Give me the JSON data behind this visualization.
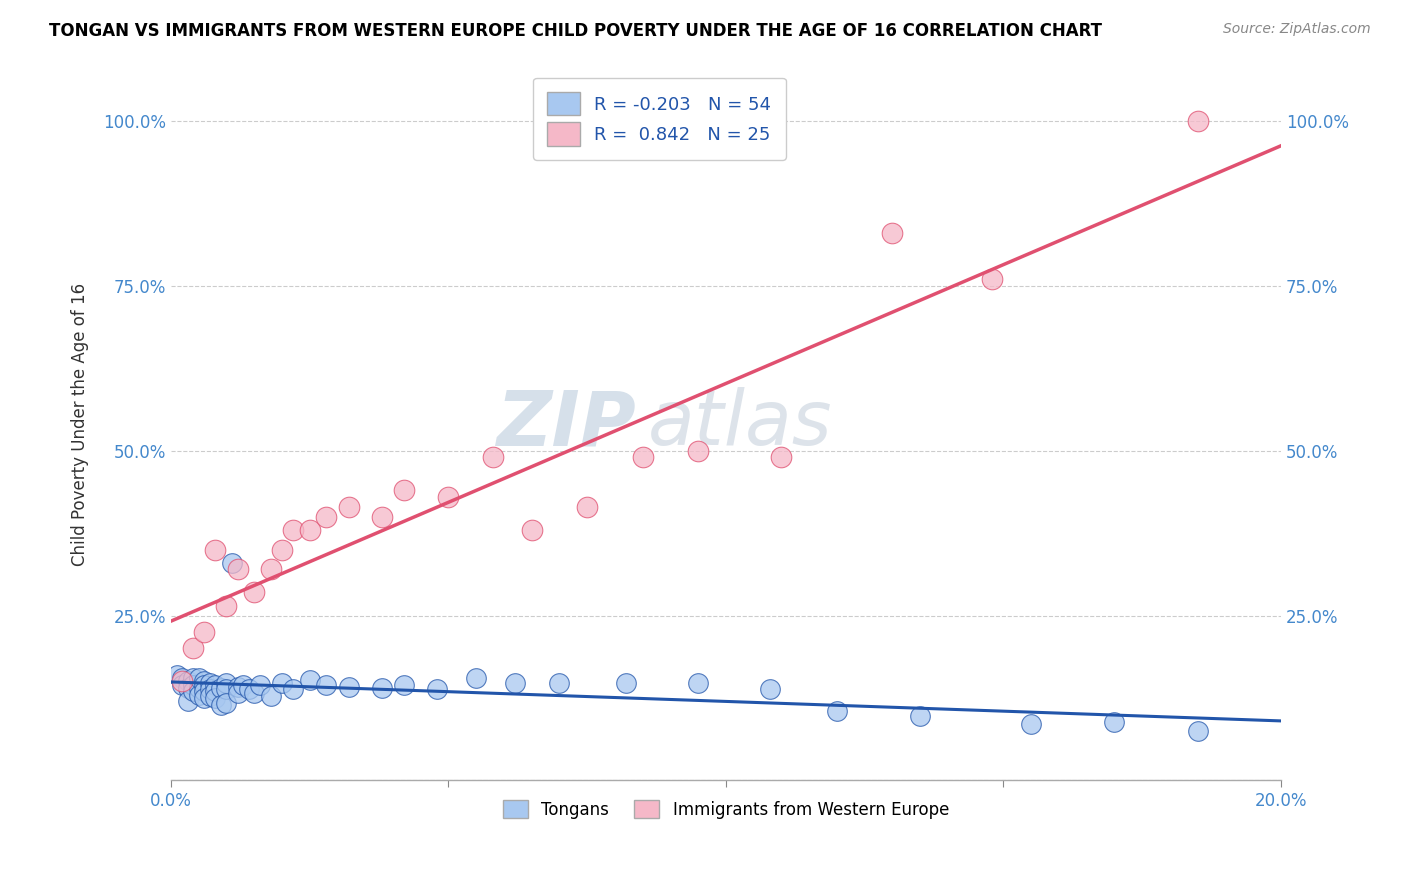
{
  "title": "TONGAN VS IMMIGRANTS FROM WESTERN EUROPE CHILD POVERTY UNDER THE AGE OF 16 CORRELATION CHART",
  "source": "Source: ZipAtlas.com",
  "ylabel": "Child Poverty Under the Age of 16",
  "xlim": [
    0.0,
    0.2
  ],
  "ylim": [
    0.0,
    1.08
  ],
  "xtick_vals": [
    0.0,
    0.05,
    0.1,
    0.15,
    0.2
  ],
  "xtick_labels": [
    "0.0%",
    "",
    "",
    "",
    "20.0%"
  ],
  "ytick_vals": [
    0.0,
    0.25,
    0.5,
    0.75,
    1.0
  ],
  "ytick_labels": [
    "",
    "25.0%",
    "50.0%",
    "75.0%",
    "100.0%"
  ],
  "blue_color": "#A8C8F0",
  "pink_color": "#F5B8C8",
  "blue_line_color": "#2255AA",
  "pink_line_color": "#E05070",
  "watermark_zip": "ZIP",
  "watermark_atlas": "atlas",
  "legend_R_blue": "-0.203",
  "legend_N_blue": "54",
  "legend_R_pink": "0.842",
  "legend_N_pink": "25",
  "legend_label_blue": "Tongans",
  "legend_label_pink": "Immigrants from Western Europe",
  "blue_scatter_x": [
    0.001,
    0.002,
    0.002,
    0.003,
    0.003,
    0.003,
    0.004,
    0.004,
    0.004,
    0.005,
    0.005,
    0.005,
    0.006,
    0.006,
    0.006,
    0.006,
    0.007,
    0.007,
    0.007,
    0.008,
    0.008,
    0.008,
    0.009,
    0.009,
    0.01,
    0.01,
    0.01,
    0.011,
    0.012,
    0.012,
    0.013,
    0.014,
    0.015,
    0.016,
    0.018,
    0.02,
    0.022,
    0.025,
    0.028,
    0.032,
    0.038,
    0.042,
    0.048,
    0.055,
    0.062,
    0.07,
    0.082,
    0.095,
    0.108,
    0.12,
    0.135,
    0.155,
    0.17,
    0.185
  ],
  "blue_scatter_y": [
    0.16,
    0.155,
    0.145,
    0.15,
    0.14,
    0.12,
    0.155,
    0.145,
    0.135,
    0.14,
    0.13,
    0.155,
    0.15,
    0.145,
    0.135,
    0.125,
    0.148,
    0.138,
    0.128,
    0.145,
    0.135,
    0.125,
    0.14,
    0.115,
    0.148,
    0.138,
    0.118,
    0.33,
    0.142,
    0.132,
    0.145,
    0.138,
    0.132,
    0.145,
    0.128,
    0.148,
    0.138,
    0.152,
    0.145,
    0.142,
    0.14,
    0.145,
    0.138,
    0.155,
    0.148,
    0.148,
    0.148,
    0.148,
    0.138,
    0.105,
    0.098,
    0.085,
    0.088,
    0.075
  ],
  "pink_scatter_x": [
    0.002,
    0.004,
    0.006,
    0.008,
    0.01,
    0.012,
    0.015,
    0.018,
    0.02,
    0.022,
    0.025,
    0.028,
    0.032,
    0.038,
    0.042,
    0.05,
    0.058,
    0.065,
    0.075,
    0.085,
    0.095,
    0.11,
    0.13,
    0.148,
    0.185
  ],
  "pink_scatter_y": [
    0.15,
    0.2,
    0.225,
    0.35,
    0.265,
    0.32,
    0.285,
    0.32,
    0.35,
    0.38,
    0.38,
    0.4,
    0.415,
    0.4,
    0.44,
    0.43,
    0.49,
    0.38,
    0.415,
    0.49,
    0.5,
    0.49,
    0.83,
    0.76,
    1.0
  ]
}
